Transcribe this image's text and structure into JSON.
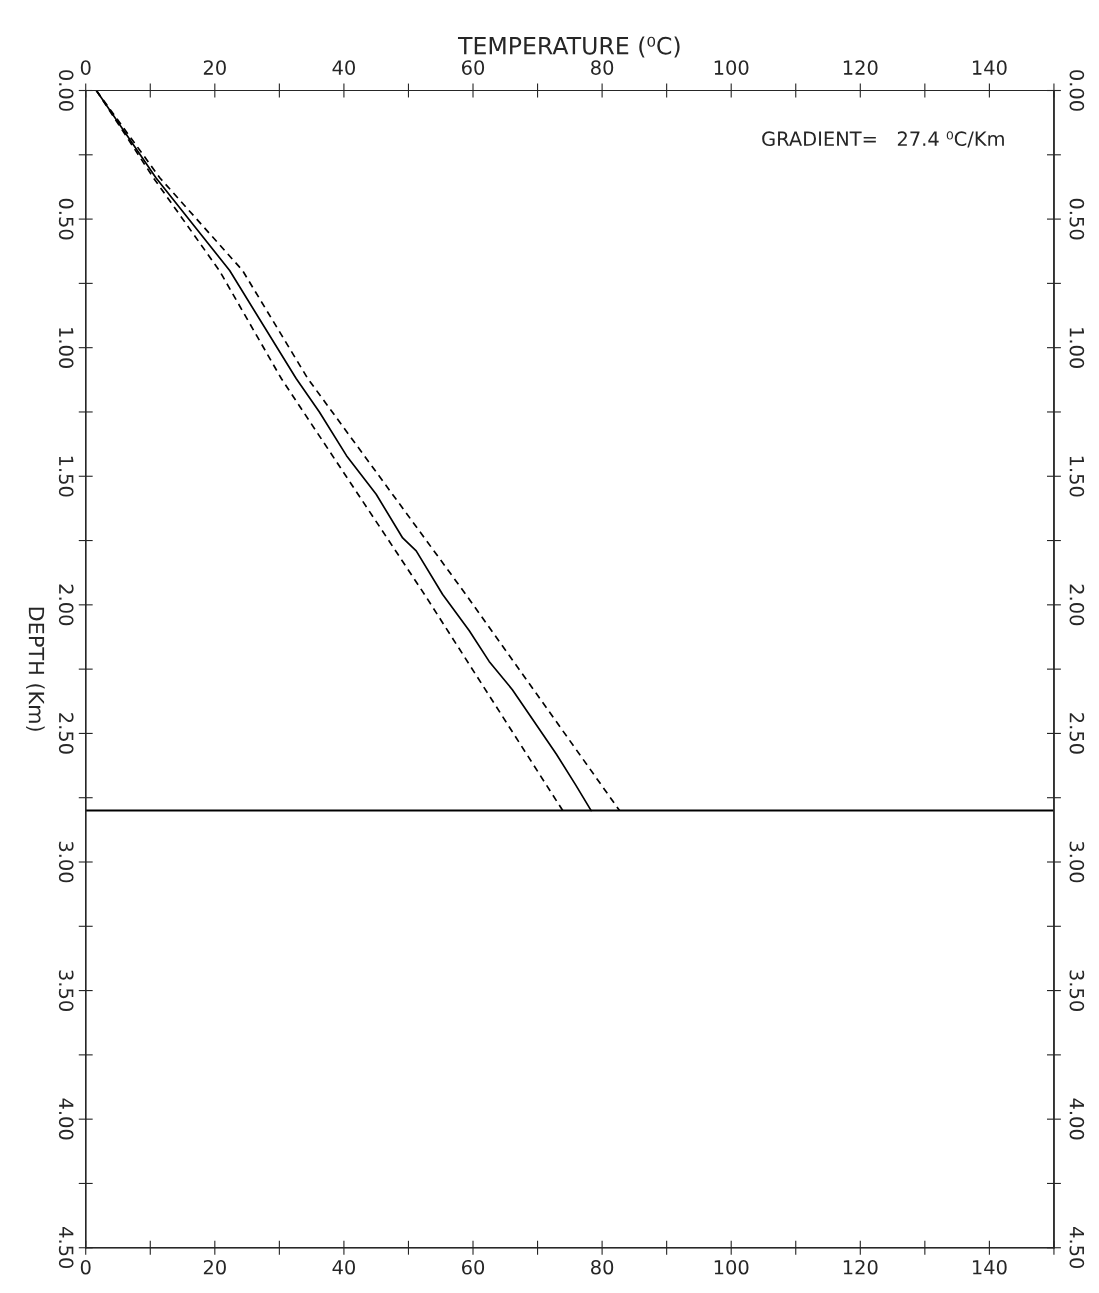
{
  "chart_data": {
    "type": "line",
    "x2label": "TEMPERATURE (⁰C)",
    "ylabel": "DEPTH (Km)",
    "annotations": [
      "GRADIENT=   27.4 ⁰C/Km"
    ],
    "series": [
      {
        "color": "#000000",
        "line_style": "solid",
        "x": [
          1.65,
          10.9,
          22.3,
          32.6,
          36.2,
          40.4,
          45.0,
          49.1,
          51.2,
          55.3,
          59.4,
          62.5,
          66.1,
          72.9,
          75.9,
          78.3
        ],
        "values": [
          0,
          0.34,
          0.7,
          1.12,
          1.25,
          1.42,
          1.57,
          1.74,
          1.79,
          1.96,
          2.1,
          2.22,
          2.33,
          2.58,
          2.7,
          2.8
        ]
      },
      {
        "color": "#000000",
        "line_style": "dashed",
        "x": [
          1.65,
          11.5,
          24.3,
          34.4,
          58.9,
          82.7
        ],
        "values": [
          0,
          0.34,
          0.7,
          1.12,
          1.96,
          2.8
        ]
      },
      {
        "color": "#000000",
        "line_style": "dashed",
        "x": [
          1.65,
          10.5,
          20.7,
          30.3,
          52.5,
          73.9
        ],
        "values": [
          0,
          0.34,
          0.7,
          1.12,
          1.96,
          2.8
        ]
      }
    ],
    "ref_lines": [
      {
        "axis": "y",
        "value": 2.8,
        "color": "#000000",
        "line_style": "solid"
      }
    ],
    "xlim": [
      0,
      150
    ],
    "xticks": [
      0,
      {
        "value": 10,
        "label": null
      },
      20,
      {
        "value": 30,
        "label": null
      },
      40,
      {
        "value": 50,
        "label": null
      },
      60,
      {
        "value": 70,
        "label": null
      },
      80,
      {
        "value": 90,
        "label": null
      },
      100,
      {
        "value": 110,
        "label": null
      },
      120,
      {
        "value": 130,
        "label": null
      },
      140,
      {
        "value": 150,
        "label": null
      }
    ],
    "x2lim": [
      0,
      150
    ],
    "x2ticks": [
      0,
      {
        "value": 10,
        "label": null
      },
      20,
      {
        "value": 30,
        "label": null
      },
      40,
      {
        "value": 50,
        "label": null
      },
      60,
      {
        "value": 70,
        "label": null
      },
      80,
      {
        "value": 90,
        "label": null
      },
      100,
      {
        "value": 110,
        "label": null
      },
      120,
      {
        "value": 130,
        "label": null
      },
      140,
      {
        "value": 150,
        "label": null
      }
    ],
    "ylim": [
      4.5,
      0
    ],
    "yticks": [
      {
        "value": 0,
        "label": "0.00"
      },
      {
        "value": 0.25,
        "label": null
      },
      {
        "value": 0.5,
        "label": "0.50"
      },
      {
        "value": 0.75,
        "label": null
      },
      {
        "value": 1,
        "label": "1.00"
      },
      {
        "value": 1.25,
        "label": null
      },
      {
        "value": 1.5,
        "label": "1.50"
      },
      {
        "value": 1.75,
        "label": null
      },
      {
        "value": 2,
        "label": "2.00"
      },
      {
        "value": 2.25,
        "label": null
      },
      {
        "value": 2.5,
        "label": "2.50"
      },
      {
        "value": 2.75,
        "label": null
      },
      {
        "value": 3,
        "label": "3.00"
      },
      {
        "value": 3.25,
        "label": null
      },
      {
        "value": 3.5,
        "label": "3.50"
      },
      {
        "value": 3.75,
        "label": null
      },
      {
        "value": 4,
        "label": "4.00"
      },
      {
        "value": 4.25,
        "label": null
      },
      {
        "value": 4.5,
        "label": "4.50"
      }
    ],
    "y2lim": [
      4.5,
      0
    ],
    "y2ticks": [
      {
        "value": 0,
        "label": "0.00"
      },
      {
        "value": 0.25,
        "label": null
      },
      {
        "value": 0.5,
        "label": "0.50"
      },
      {
        "value": 0.75,
        "label": null
      },
      {
        "value": 1,
        "label": "1.00"
      },
      {
        "value": 1.25,
        "label": null
      },
      {
        "value": 1.5,
        "label": "1.50"
      },
      {
        "value": 1.75,
        "label": null
      },
      {
        "value": 2,
        "label": "2.00"
      },
      {
        "value": 2.25,
        "label": null
      },
      {
        "value": 2.5,
        "label": "2.50"
      },
      {
        "value": 2.75,
        "label": null
      },
      {
        "value": 3,
        "label": "3.00"
      },
      {
        "value": 3.25,
        "label": null
      },
      {
        "value": 3.5,
        "label": "3.50"
      },
      {
        "value": 3.75,
        "label": null
      },
      {
        "value": 4,
        "label": "4.00"
      },
      {
        "value": 4.25,
        "label": null
      },
      {
        "value": 4.5,
        "label": "4.50"
      }
    ],
    "grid": false,
    "legend": false
  }
}
